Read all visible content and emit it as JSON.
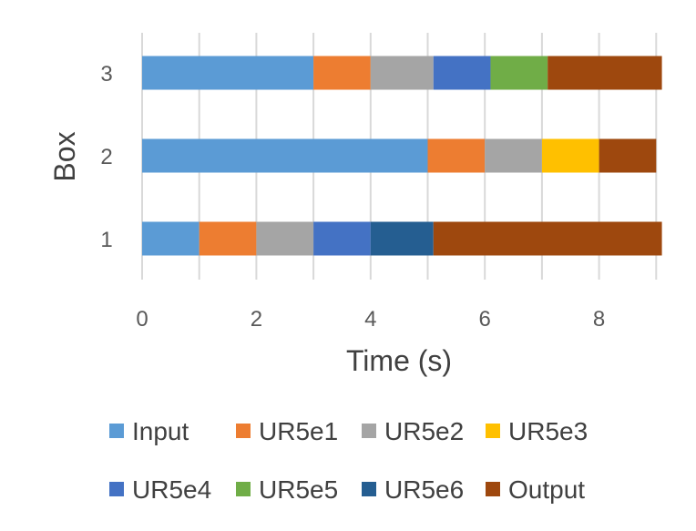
{
  "chart_data": {
    "type": "bar",
    "orientation": "horizontal",
    "stacked": true,
    "xlabel": "Time (s)",
    "ylabel": "Box",
    "xlim": [
      0,
      9
    ],
    "xticks": [
      0,
      2,
      4,
      6,
      8
    ],
    "categories": [
      "1",
      "2",
      "3"
    ],
    "grid": "vertical",
    "legend_placement": "bottom",
    "series": [
      {
        "name": "Input",
        "color": "#5B9BD5",
        "values": [
          1,
          5,
          3
        ]
      },
      {
        "name": "UR5e1",
        "color": "#ED7D31",
        "values": [
          1,
          1,
          1
        ]
      },
      {
        "name": "UR5e2",
        "color": "#A5A5A5",
        "values": [
          1,
          1,
          1.1
        ]
      },
      {
        "name": "UR5e3",
        "color": "#FFC000",
        "values": [
          0,
          1,
          0
        ]
      },
      {
        "name": "UR5e4",
        "color": "#4472C4",
        "values": [
          1,
          0,
          1
        ]
      },
      {
        "name": "UR5e5",
        "color": "#70AD47",
        "values": [
          0,
          0,
          1
        ]
      },
      {
        "name": "UR5e6",
        "color": "#255E91",
        "values": [
          1.1,
          0,
          0
        ]
      },
      {
        "name": "Output",
        "color": "#9E480E",
        "values": [
          4,
          1,
          2
        ]
      }
    ]
  }
}
